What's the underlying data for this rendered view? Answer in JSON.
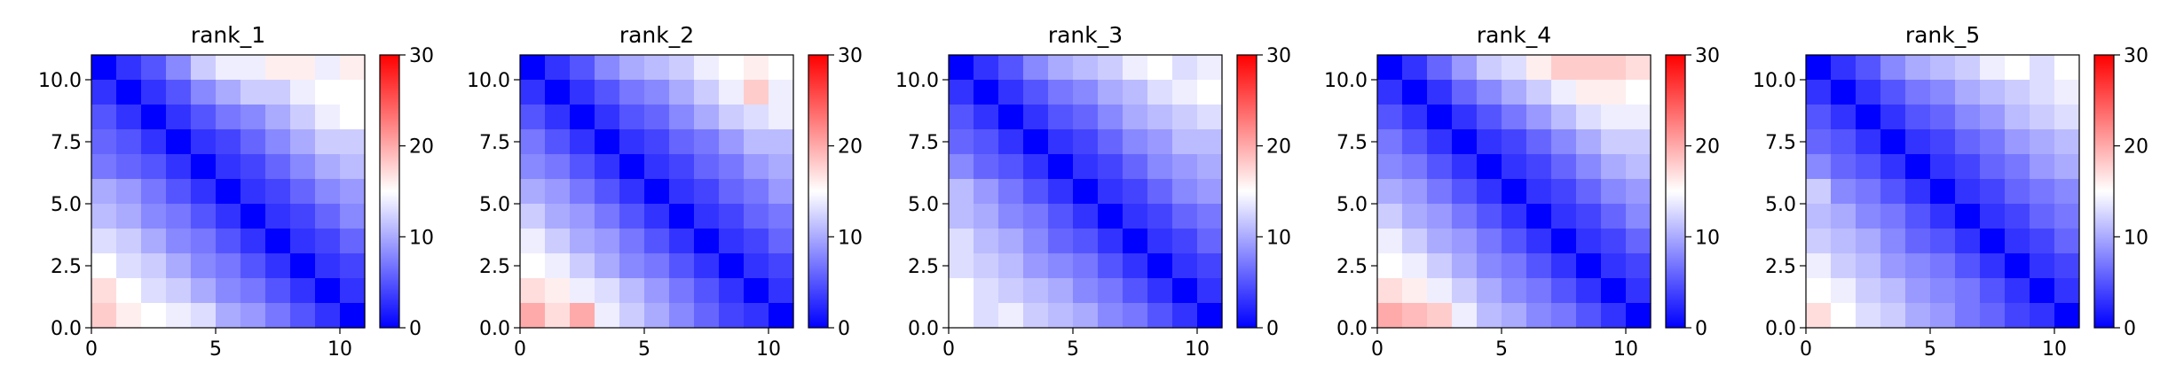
{
  "chart_data": [
    {
      "type": "heatmap",
      "title": "rank_1",
      "colormap": "bwr",
      "vmin": 0,
      "vmax": 30,
      "colorbar_ticks": [
        0,
        10,
        20,
        30
      ],
      "x_ticks": [
        0,
        5,
        10
      ],
      "y_ticks": [
        "0.0",
        "2.5",
        "5.0",
        "7.5",
        "10.0"
      ],
      "extent": [
        0,
        11,
        11,
        0
      ],
      "values": [
        [
          0,
          3,
          5,
          8,
          12,
          14,
          14,
          16,
          16,
          14,
          16
        ],
        [
          3,
          0,
          3,
          5,
          8,
          10,
          12,
          12,
          14,
          15,
          15
        ],
        [
          5,
          3,
          0,
          3,
          5,
          7,
          8,
          10,
          12,
          14,
          15
        ],
        [
          6,
          5,
          3,
          0,
          3,
          4,
          6,
          8,
          10,
          12,
          12
        ],
        [
          7,
          6,
          5,
          3,
          0,
          3,
          4,
          6,
          8,
          10,
          11
        ],
        [
          10,
          9,
          7,
          5,
          3,
          0,
          3,
          4,
          6,
          8,
          9
        ],
        [
          11,
          10,
          8,
          7,
          5,
          3,
          0,
          3,
          4,
          6,
          8
        ],
        [
          13,
          12,
          10,
          8,
          7,
          5,
          3,
          0,
          3,
          4,
          6
        ],
        [
          15,
          13,
          12,
          10,
          8,
          7,
          5,
          3,
          0,
          3,
          4
        ],
        [
          17,
          15,
          13,
          12,
          10,
          8,
          7,
          5,
          3,
          0,
          3
        ],
        [
          18,
          16,
          15,
          14,
          13,
          10,
          9,
          7,
          5,
          3,
          0
        ]
      ]
    },
    {
      "type": "heatmap",
      "title": "rank_2",
      "colormap": "bwr",
      "vmin": 0,
      "vmax": 30,
      "colorbar_ticks": [
        0,
        10,
        20,
        30
      ],
      "x_ticks": [
        0,
        5,
        10
      ],
      "y_ticks": [
        "0.0",
        "2.5",
        "5.0",
        "7.5",
        "10.0"
      ],
      "extent": [
        0,
        11,
        11,
        0
      ],
      "values": [
        [
          0,
          3,
          5,
          8,
          10,
          11,
          12,
          14,
          15,
          16,
          15
        ],
        [
          3,
          0,
          3,
          5,
          7,
          8,
          10,
          12,
          14,
          18,
          14
        ],
        [
          5,
          3,
          0,
          3,
          5,
          6,
          8,
          10,
          12,
          13,
          14
        ],
        [
          7,
          5,
          3,
          0,
          3,
          4,
          6,
          7,
          9,
          11,
          11
        ],
        [
          8,
          7,
          5,
          3,
          0,
          3,
          4,
          6,
          7,
          9,
          10
        ],
        [
          10,
          9,
          7,
          5,
          3,
          0,
          3,
          4,
          6,
          7,
          9
        ],
        [
          12,
          10,
          9,
          7,
          5,
          3,
          0,
          3,
          4,
          6,
          7
        ],
        [
          14,
          12,
          10,
          9,
          7,
          5,
          3,
          0,
          3,
          4,
          6
        ],
        [
          15,
          14,
          12,
          10,
          8,
          7,
          5,
          3,
          0,
          3,
          4
        ],
        [
          17,
          16,
          14,
          13,
          11,
          9,
          7,
          5,
          3,
          0,
          3
        ],
        [
          20,
          17,
          20,
          14,
          12,
          10,
          8,
          6,
          4,
          3,
          0
        ]
      ]
    },
    {
      "type": "heatmap",
      "title": "rank_3",
      "colormap": "bwr",
      "vmin": 0,
      "vmax": 30,
      "colorbar_ticks": [
        0,
        10,
        20,
        30
      ],
      "x_ticks": [
        0,
        5,
        10
      ],
      "y_ticks": [
        "0.0",
        "2.5",
        "5.0",
        "7.5",
        "10.0"
      ],
      "extent": [
        0,
        11,
        11,
        0
      ],
      "values": [
        [
          0,
          3,
          5,
          8,
          10,
          11,
          12,
          14,
          15,
          13,
          14
        ],
        [
          3,
          0,
          3,
          5,
          7,
          8,
          10,
          11,
          13,
          14,
          15
        ],
        [
          5,
          3,
          0,
          3,
          5,
          6,
          8,
          10,
          11,
          12,
          13
        ],
        [
          6,
          5,
          3,
          0,
          3,
          4,
          6,
          8,
          9,
          11,
          11
        ],
        [
          8,
          6,
          5,
          3,
          0,
          3,
          4,
          6,
          8,
          9,
          10
        ],
        [
          11,
          9,
          7,
          5,
          3,
          0,
          3,
          4,
          6,
          8,
          9
        ],
        [
          11,
          10,
          8,
          7,
          5,
          3,
          0,
          3,
          4,
          6,
          7
        ],
        [
          13,
          11,
          10,
          8,
          6,
          5,
          3,
          0,
          3,
          4,
          6
        ],
        [
          13,
          12,
          11,
          9,
          8,
          7,
          5,
          3,
          0,
          3,
          4
        ],
        [
          15,
          13,
          12,
          11,
          10,
          8,
          7,
          5,
          3,
          0,
          3
        ],
        [
          15,
          13,
          14,
          12,
          11,
          10,
          8,
          7,
          5,
          3,
          0
        ]
      ]
    },
    {
      "type": "heatmap",
      "title": "rank_4",
      "colormap": "bwr",
      "vmin": 0,
      "vmax": 30,
      "colorbar_ticks": [
        0,
        10,
        20,
        30
      ],
      "x_ticks": [
        0,
        5,
        10
      ],
      "y_ticks": [
        "0.0",
        "2.5",
        "5.0",
        "7.5",
        "10.0"
      ],
      "extent": [
        0,
        11,
        11,
        0
      ],
      "values": [
        [
          0,
          3,
          6,
          9,
          12,
          13,
          16,
          18,
          18,
          18,
          17
        ],
        [
          3,
          0,
          3,
          6,
          8,
          10,
          12,
          14,
          16,
          16,
          15
        ],
        [
          5,
          3,
          0,
          3,
          5,
          7,
          9,
          11,
          13,
          14,
          14
        ],
        [
          7,
          5,
          3,
          0,
          3,
          4,
          6,
          8,
          10,
          12,
          12
        ],
        [
          8,
          7,
          5,
          3,
          0,
          3,
          4,
          6,
          8,
          10,
          11
        ],
        [
          10,
          9,
          7,
          5,
          3,
          0,
          3,
          4,
          6,
          8,
          9
        ],
        [
          12,
          10,
          9,
          7,
          5,
          3,
          0,
          3,
          4,
          6,
          8
        ],
        [
          14,
          12,
          10,
          9,
          7,
          5,
          3,
          0,
          3,
          4,
          6
        ],
        [
          15,
          14,
          12,
          10,
          8,
          7,
          5,
          3,
          0,
          3,
          4
        ],
        [
          17,
          16,
          14,
          12,
          10,
          8,
          7,
          5,
          3,
          0,
          3
        ],
        [
          20,
          19,
          18,
          14,
          11,
          10,
          8,
          7,
          5,
          3,
          0
        ]
      ]
    },
    {
      "type": "heatmap",
      "title": "rank_5",
      "colormap": "bwr",
      "vmin": 0,
      "vmax": 30,
      "colorbar_ticks": [
        0,
        10,
        20,
        30
      ],
      "x_ticks": [
        0,
        5,
        10
      ],
      "y_ticks": [
        "0.0",
        "2.5",
        "5.0",
        "7.5",
        "10.0"
      ],
      "extent": [
        0,
        11,
        11,
        0
      ],
      "values": [
        [
          0,
          3,
          5,
          8,
          10,
          11,
          12,
          14,
          15,
          13,
          15
        ],
        [
          3,
          0,
          3,
          5,
          7,
          8,
          10,
          11,
          12,
          13,
          14
        ],
        [
          5,
          3,
          0,
          3,
          5,
          6,
          8,
          9,
          11,
          12,
          13
        ],
        [
          6,
          5,
          3,
          0,
          3,
          4,
          6,
          7,
          9,
          10,
          11
        ],
        [
          8,
          6,
          5,
          3,
          0,
          3,
          4,
          6,
          7,
          9,
          10
        ],
        [
          12,
          8,
          7,
          5,
          3,
          0,
          3,
          4,
          6,
          7,
          8
        ],
        [
          11,
          10,
          8,
          7,
          5,
          3,
          0,
          3,
          4,
          6,
          7
        ],
        [
          12,
          11,
          10,
          8,
          6,
          5,
          3,
          0,
          3,
          4,
          6
        ],
        [
          14,
          12,
          11,
          9,
          8,
          7,
          5,
          3,
          0,
          3,
          4
        ],
        [
          15,
          14,
          12,
          11,
          9,
          8,
          7,
          5,
          3,
          0,
          3
        ],
        [
          17,
          15,
          13,
          12,
          10,
          9,
          7,
          6,
          4,
          3,
          0
        ]
      ]
    }
  ]
}
